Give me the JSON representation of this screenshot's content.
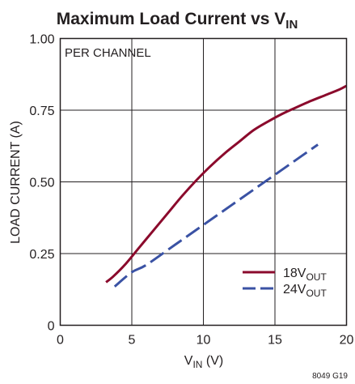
{
  "chart_data": {
    "type": "line",
    "title": {
      "main": "Maximum Load Current vs V",
      "sub": "IN"
    },
    "xlabel": {
      "main": "V",
      "sub": "IN",
      "suffix": " (V)"
    },
    "ylabel": "LOAD CURRENT (A)",
    "xlim": [
      0,
      20
    ],
    "ylim": [
      0,
      1.0
    ],
    "x_ticks": [
      0,
      5,
      10,
      15,
      20
    ],
    "x_tick_labels": [
      "0",
      "5",
      "10",
      "15",
      "20"
    ],
    "y_ticks": [
      0,
      0.25,
      0.5,
      0.75,
      1.0
    ],
    "y_tick_labels": [
      "0",
      "0.25",
      "0.50",
      "0.75",
      "1.00"
    ],
    "grid": true,
    "annotation": "PER CHANNEL",
    "legend_position": "bottom-right",
    "figure_number": "8049 G19",
    "series": [
      {
        "name": "18V",
        "name_sub": "OUT",
        "color": "#8b0a2c",
        "style": "solid",
        "x": [
          3.2,
          3.7,
          4.5,
          5.5,
          6.5,
          7.5,
          8.5,
          9.5,
          10.5,
          11.5,
          12.5,
          13.5,
          14.5,
          15.5,
          16.5,
          17.5,
          18.5,
          19.5,
          20.0
        ],
        "y": [
          0.15,
          0.17,
          0.21,
          0.27,
          0.33,
          0.39,
          0.45,
          0.505,
          0.555,
          0.6,
          0.64,
          0.68,
          0.71,
          0.737,
          0.76,
          0.782,
          0.802,
          0.822,
          0.835
        ]
      },
      {
        "name": "24V",
        "name_sub": "OUT",
        "color": "#3a52a4",
        "style": "dashed",
        "x": [
          3.8,
          5,
          6,
          8,
          10,
          12,
          14,
          16,
          18
        ],
        "y": [
          0.135,
          0.185,
          0.21,
          0.28,
          0.35,
          0.42,
          0.49,
          0.56,
          0.63
        ]
      }
    ]
  }
}
